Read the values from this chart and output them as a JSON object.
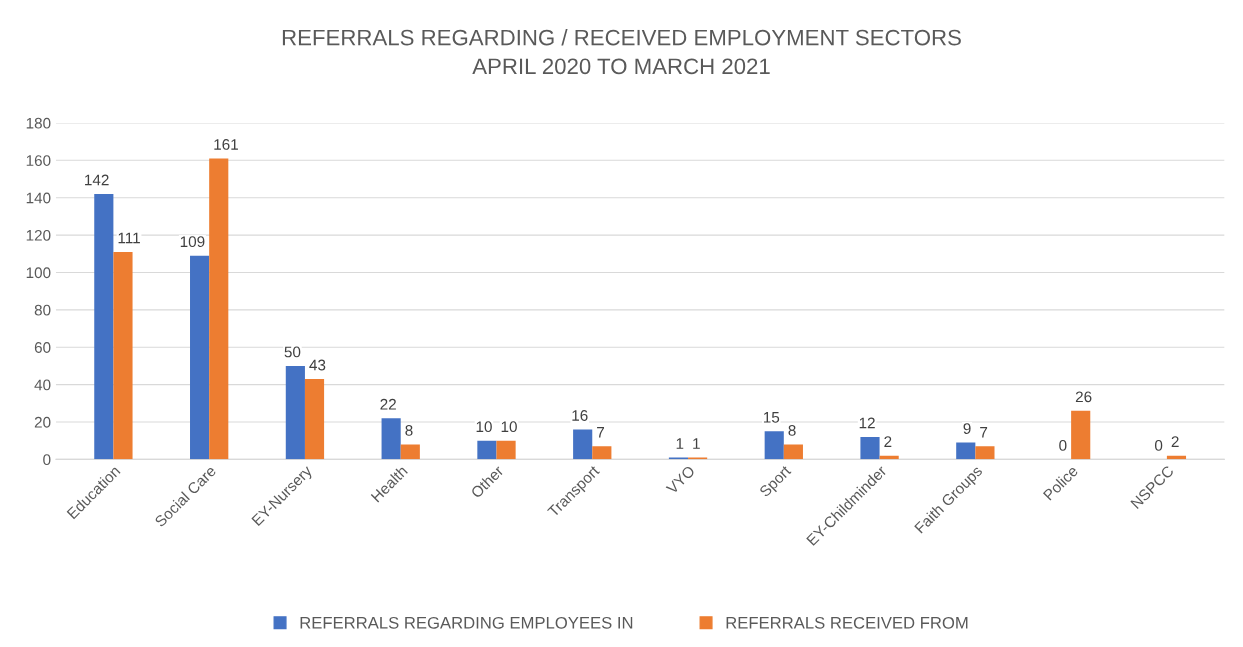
{
  "chart_data": {
    "type": "bar",
    "title": "REFERRALS REGARDING / RECEIVED EMPLOYMENT SECTORS\nAPRIL 2020 TO MARCH 2021",
    "categories": [
      "Education",
      "Social Care",
      "EY-Nursery",
      "Health",
      "Other",
      "Transport",
      "VYO",
      "Sport",
      "EY-Childminder",
      "Faith Groups",
      "Police",
      "NSPCC"
    ],
    "series": [
      {
        "name": "REFERRALS REGARDING EMPLOYEES IN",
        "color": "#4472c4",
        "values": [
          142,
          109,
          50,
          22,
          10,
          16,
          1,
          15,
          12,
          9,
          0,
          0
        ]
      },
      {
        "name": "REFERRALS RECEIVED FROM",
        "color": "#ed7d31",
        "values": [
          111,
          161,
          43,
          8,
          10,
          7,
          1,
          8,
          2,
          7,
          26,
          2
        ]
      }
    ],
    "ylim": [
      0,
      180
    ],
    "yticks": [
      0,
      20,
      40,
      60,
      80,
      100,
      120,
      140,
      160,
      180
    ],
    "grid": "y",
    "legend": "bottom",
    "data_labels": true
  }
}
